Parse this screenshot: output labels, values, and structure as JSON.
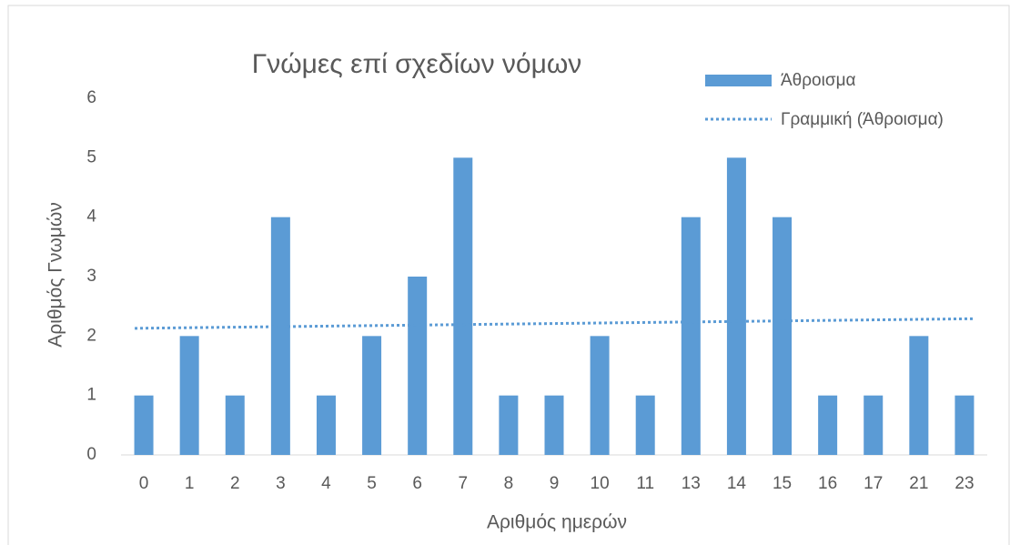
{
  "chart_data": {
    "type": "bar",
    "title": "Γνώμες επί σχεδίων νόμων",
    "x_label": "Αριθμός ημερών",
    "y_label": "Αριθμός Γνωμών",
    "categories": [
      "0",
      "1",
      "2",
      "3",
      "4",
      "5",
      "6",
      "7",
      "8",
      "9",
      "10",
      "11",
      "13",
      "14",
      "15",
      "16",
      "17",
      "21",
      "23"
    ],
    "series": [
      {
        "name": "Άθροισμα",
        "color": "#5b9bd5",
        "values": [
          1,
          2,
          1,
          4,
          1,
          2,
          3,
          5,
          1,
          1,
          2,
          1,
          4,
          5,
          4,
          1,
          1,
          2,
          1
        ]
      }
    ],
    "trendline": {
      "name": "Γραμμική (Άθροισμα)",
      "type": "linear",
      "color": "#5b9bd5"
    },
    "ylim": [
      0,
      6
    ],
    "yticks": [
      0,
      1,
      2,
      3,
      4,
      5,
      6
    ],
    "grid": false,
    "legend": "top-right"
  }
}
